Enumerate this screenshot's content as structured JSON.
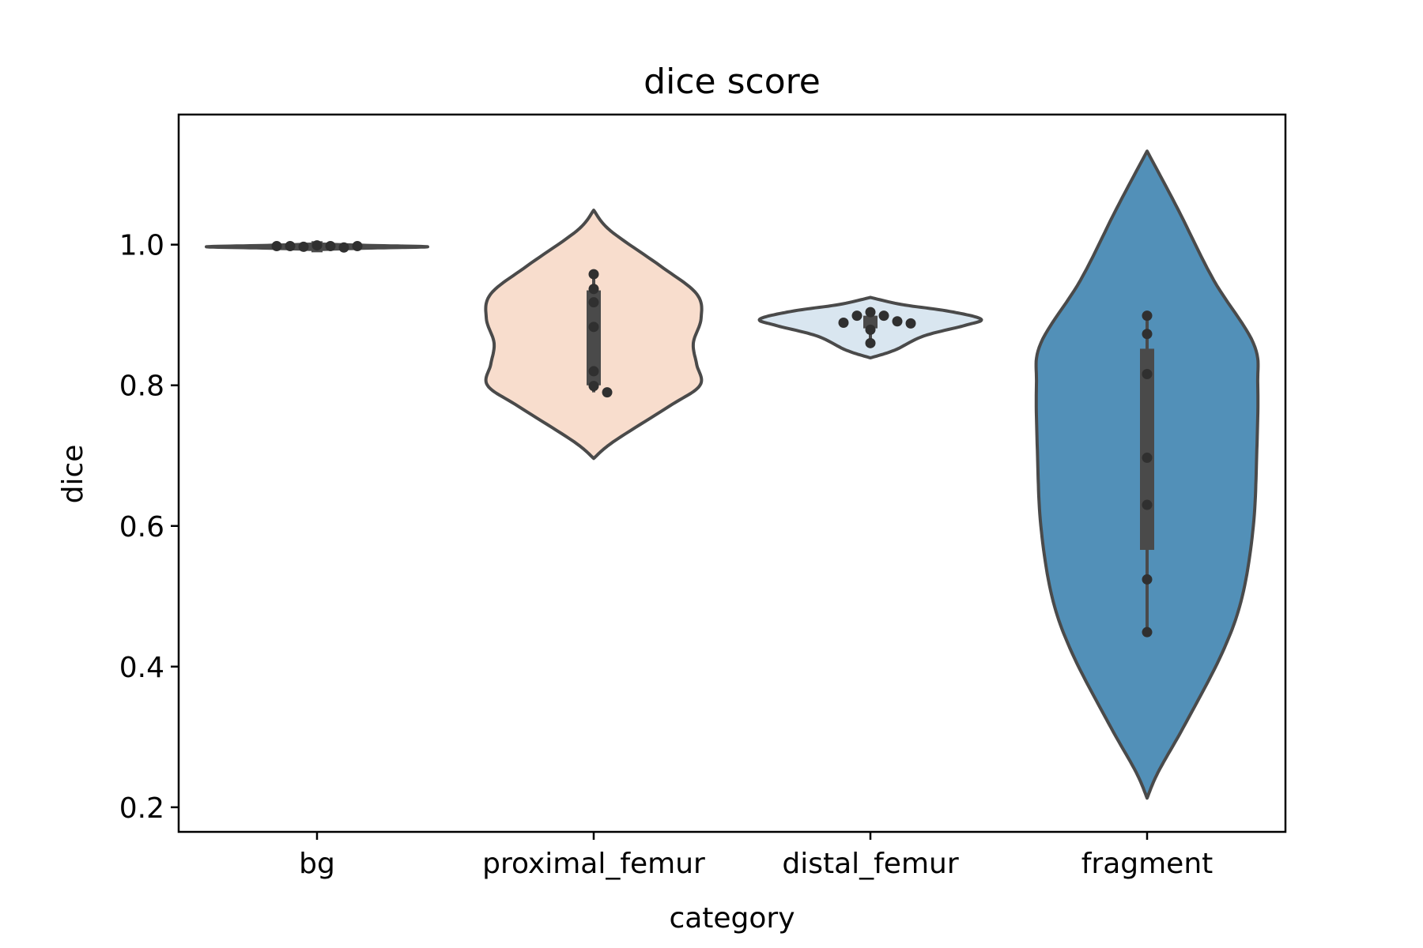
{
  "chart_data": {
    "type": "violin",
    "title": "dice score",
    "xlabel": "category",
    "ylabel": "dice",
    "ylim": [
      0.165,
      1.185
    ],
    "yticks": [
      "0.2",
      "0.4",
      "0.6",
      "0.8",
      "1.0"
    ],
    "categories": [
      "bg",
      "proximal_femur",
      "distal_femur",
      "fragment"
    ],
    "colors": [
      "#4a4a4a",
      "#f8ddcd",
      "#d9e6f0",
      "#5290b8"
    ],
    "outline_color": "#4a4a4a",
    "point_color": "#303030",
    "grid": false,
    "legend": "none",
    "series": [
      {
        "category": "bg",
        "points": [
          0.999,
          0.998,
          0.997,
          0.996,
          0.998,
          0.998,
          0.998
        ],
        "box": {
          "q1": 0.996,
          "q3": 0.999,
          "median": 0.997,
          "whisker_low": 0.996,
          "whisker_high": 0.999
        },
        "density": [
          [
            0.993,
            0.0
          ],
          [
            0.995,
            0.45
          ],
          [
            0.997,
            1.0
          ],
          [
            0.999,
            0.45
          ],
          [
            1.001,
            0.0
          ]
        ]
      },
      {
        "category": "proximal_femur",
        "points": [
          0.958,
          0.937,
          0.918,
          0.883,
          0.82,
          0.799,
          0.79
        ],
        "box": {
          "q1": 0.8,
          "q3": 0.935,
          "median": 0.883,
          "whisker_low": 0.79,
          "whisker_high": 0.958
        },
        "density": [
          [
            0.696,
            0.0
          ],
          [
            0.72,
            0.18
          ],
          [
            0.77,
            0.68
          ],
          [
            0.8,
            0.96
          ],
          [
            0.83,
            0.93
          ],
          [
            0.86,
            0.9
          ],
          [
            0.895,
            0.97
          ],
          [
            0.93,
            0.93
          ],
          [
            0.97,
            0.6
          ],
          [
            1.02,
            0.15
          ],
          [
            1.049,
            0.0
          ]
        ]
      },
      {
        "category": "distal_femur",
        "points": [
          0.904,
          0.899,
          0.899,
          0.891,
          0.889,
          0.888,
          0.879,
          0.86
        ],
        "box": {
          "q1": 0.881,
          "q3": 0.899,
          "median": 0.891,
          "whisker_low": 0.86,
          "whisker_high": 0.904
        },
        "density": [
          [
            0.839,
            0.0
          ],
          [
            0.85,
            0.22
          ],
          [
            0.87,
            0.48
          ],
          [
            0.885,
            0.85
          ],
          [
            0.894,
            1.0
          ],
          [
            0.905,
            0.72
          ],
          [
            0.915,
            0.28
          ],
          [
            0.925,
            0.0
          ]
        ]
      },
      {
        "category": "fragment",
        "points": [
          0.899,
          0.873,
          0.816,
          0.697,
          0.63,
          0.524,
          0.449
        ],
        "box": {
          "q1": 0.566,
          "q3": 0.852,
          "median": 0.697,
          "whisker_low": 0.449,
          "whisker_high": 0.899
        },
        "density": [
          [
            0.213,
            0.0
          ],
          [
            0.25,
            0.1
          ],
          [
            0.32,
            0.35
          ],
          [
            0.42,
            0.68
          ],
          [
            0.5,
            0.86
          ],
          [
            0.6,
            0.96
          ],
          [
            0.7,
            0.99
          ],
          [
            0.8,
            1.0
          ],
          [
            0.86,
            0.96
          ],
          [
            0.95,
            0.6
          ],
          [
            1.05,
            0.28
          ],
          [
            1.133,
            0.0
          ]
        ]
      }
    ]
  }
}
